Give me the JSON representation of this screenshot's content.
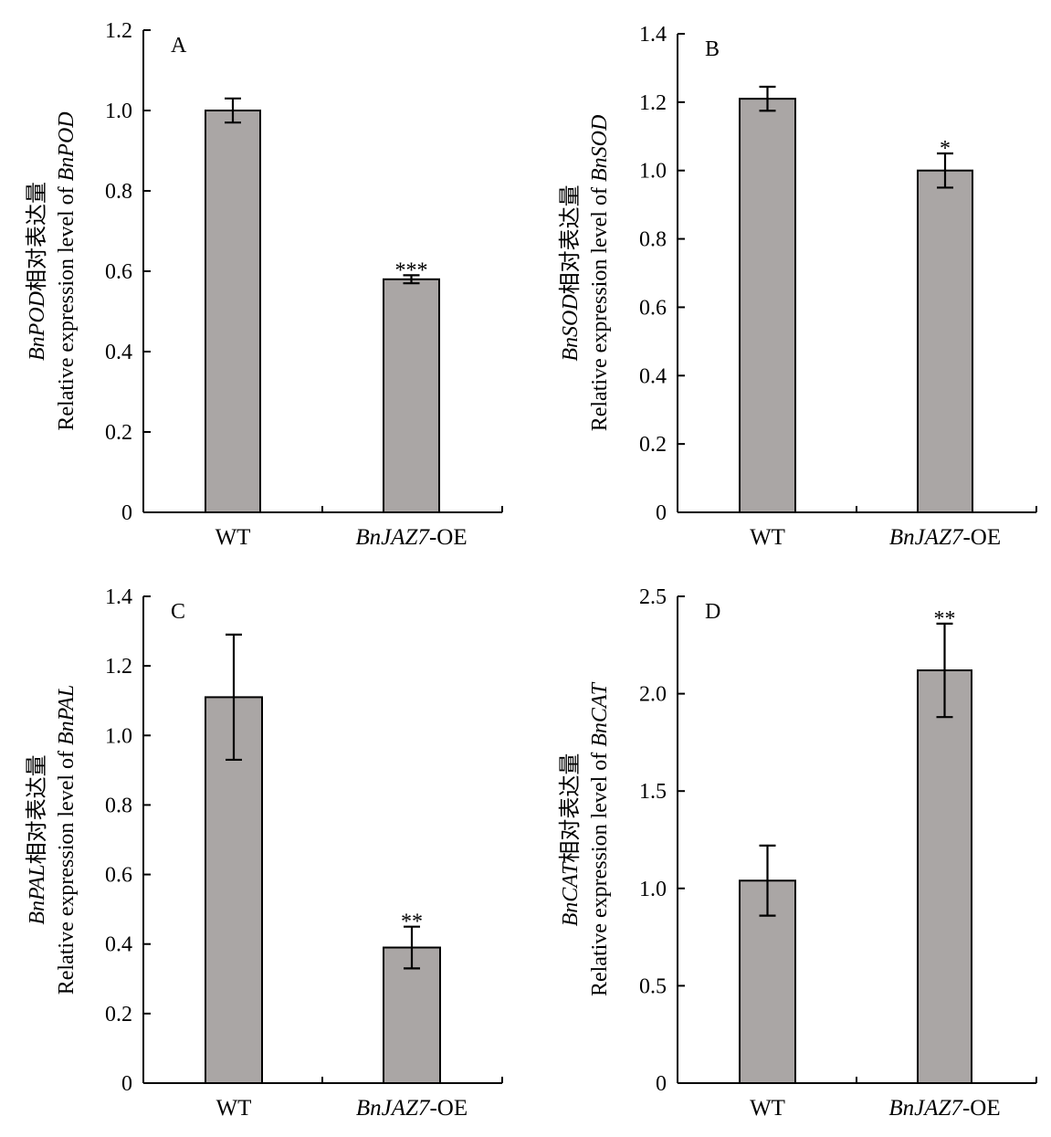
{
  "colors": {
    "bar_fill": "#aaa6a5",
    "axis": "#000000"
  },
  "chart_data": [
    {
      "type": "bar",
      "panel_label": "A",
      "categories": [
        {
          "text": "WT",
          "italic": "",
          "rest": ""
        },
        {
          "text": "",
          "italic": "BnJAZ7",
          "rest": "-OE"
        }
      ],
      "values": [
        1.0,
        0.58
      ],
      "errors": [
        0.03,
        0.01
      ],
      "significance": [
        "",
        "***"
      ],
      "ylim": [
        0,
        1.2
      ],
      "yticks": [
        "0",
        "0.2",
        "0.4",
        "0.6",
        "0.8",
        "1.0",
        "1.2"
      ],
      "ylabel_line1": {
        "gene": "BnPOD",
        "suffix": "相对表达量"
      },
      "ylabel_line2": {
        "prefix": "Relative expression level of ",
        "gene": "BnPOD"
      }
    },
    {
      "type": "bar",
      "panel_label": "B",
      "categories": [
        {
          "text": "WT",
          "italic": "",
          "rest": ""
        },
        {
          "text": "",
          "italic": "BnJAZ7",
          "rest": "-OE"
        }
      ],
      "values": [
        1.21,
        1.0
      ],
      "errors": [
        0.035,
        0.05
      ],
      "significance": [
        "",
        "*"
      ],
      "ylim": [
        0,
        1.4
      ],
      "yticks": [
        "0",
        "0.2",
        "0.4",
        "0.6",
        "0.8",
        "1.0",
        "1.2",
        "1.4"
      ],
      "ylabel_line1": {
        "gene": "BnSOD",
        "suffix": "相对表达量"
      },
      "ylabel_line2": {
        "prefix": "Relative expression level of ",
        "gene": "BnSOD"
      }
    },
    {
      "type": "bar",
      "panel_label": "C",
      "categories": [
        {
          "text": "WT",
          "italic": "",
          "rest": ""
        },
        {
          "text": "",
          "italic": "BnJAZ7",
          "rest": "-OE"
        }
      ],
      "values": [
        1.11,
        0.39
      ],
      "errors": [
        0.18,
        0.06
      ],
      "significance": [
        "",
        "**"
      ],
      "ylim": [
        0,
        1.4
      ],
      "yticks": [
        "0",
        "0.2",
        "0.4",
        "0.6",
        "0.8",
        "1.0",
        "1.2",
        "1.4"
      ],
      "ylabel_line1": {
        "gene": "BnPAL",
        "suffix": "相对表达量"
      },
      "ylabel_line2": {
        "prefix": "Relative expression level of ",
        "gene": "BnPAL"
      }
    },
    {
      "type": "bar",
      "panel_label": "D",
      "categories": [
        {
          "text": "WT",
          "italic": "",
          "rest": ""
        },
        {
          "text": "",
          "italic": "BnJAZ7",
          "rest": "-OE"
        }
      ],
      "values": [
        1.04,
        2.12
      ],
      "errors": [
        0.18,
        0.24
      ],
      "significance": [
        "",
        "**"
      ],
      "ylim": [
        0,
        2.5
      ],
      "yticks": [
        "0",
        "0.5",
        "1.0",
        "1.5",
        "2.0",
        "2.5"
      ],
      "ylabel_line1": {
        "gene": "BnCAT",
        "suffix": "相对表达量"
      },
      "ylabel_line2": {
        "prefix": "Relative expression level of ",
        "gene": "BnCAT"
      }
    }
  ]
}
